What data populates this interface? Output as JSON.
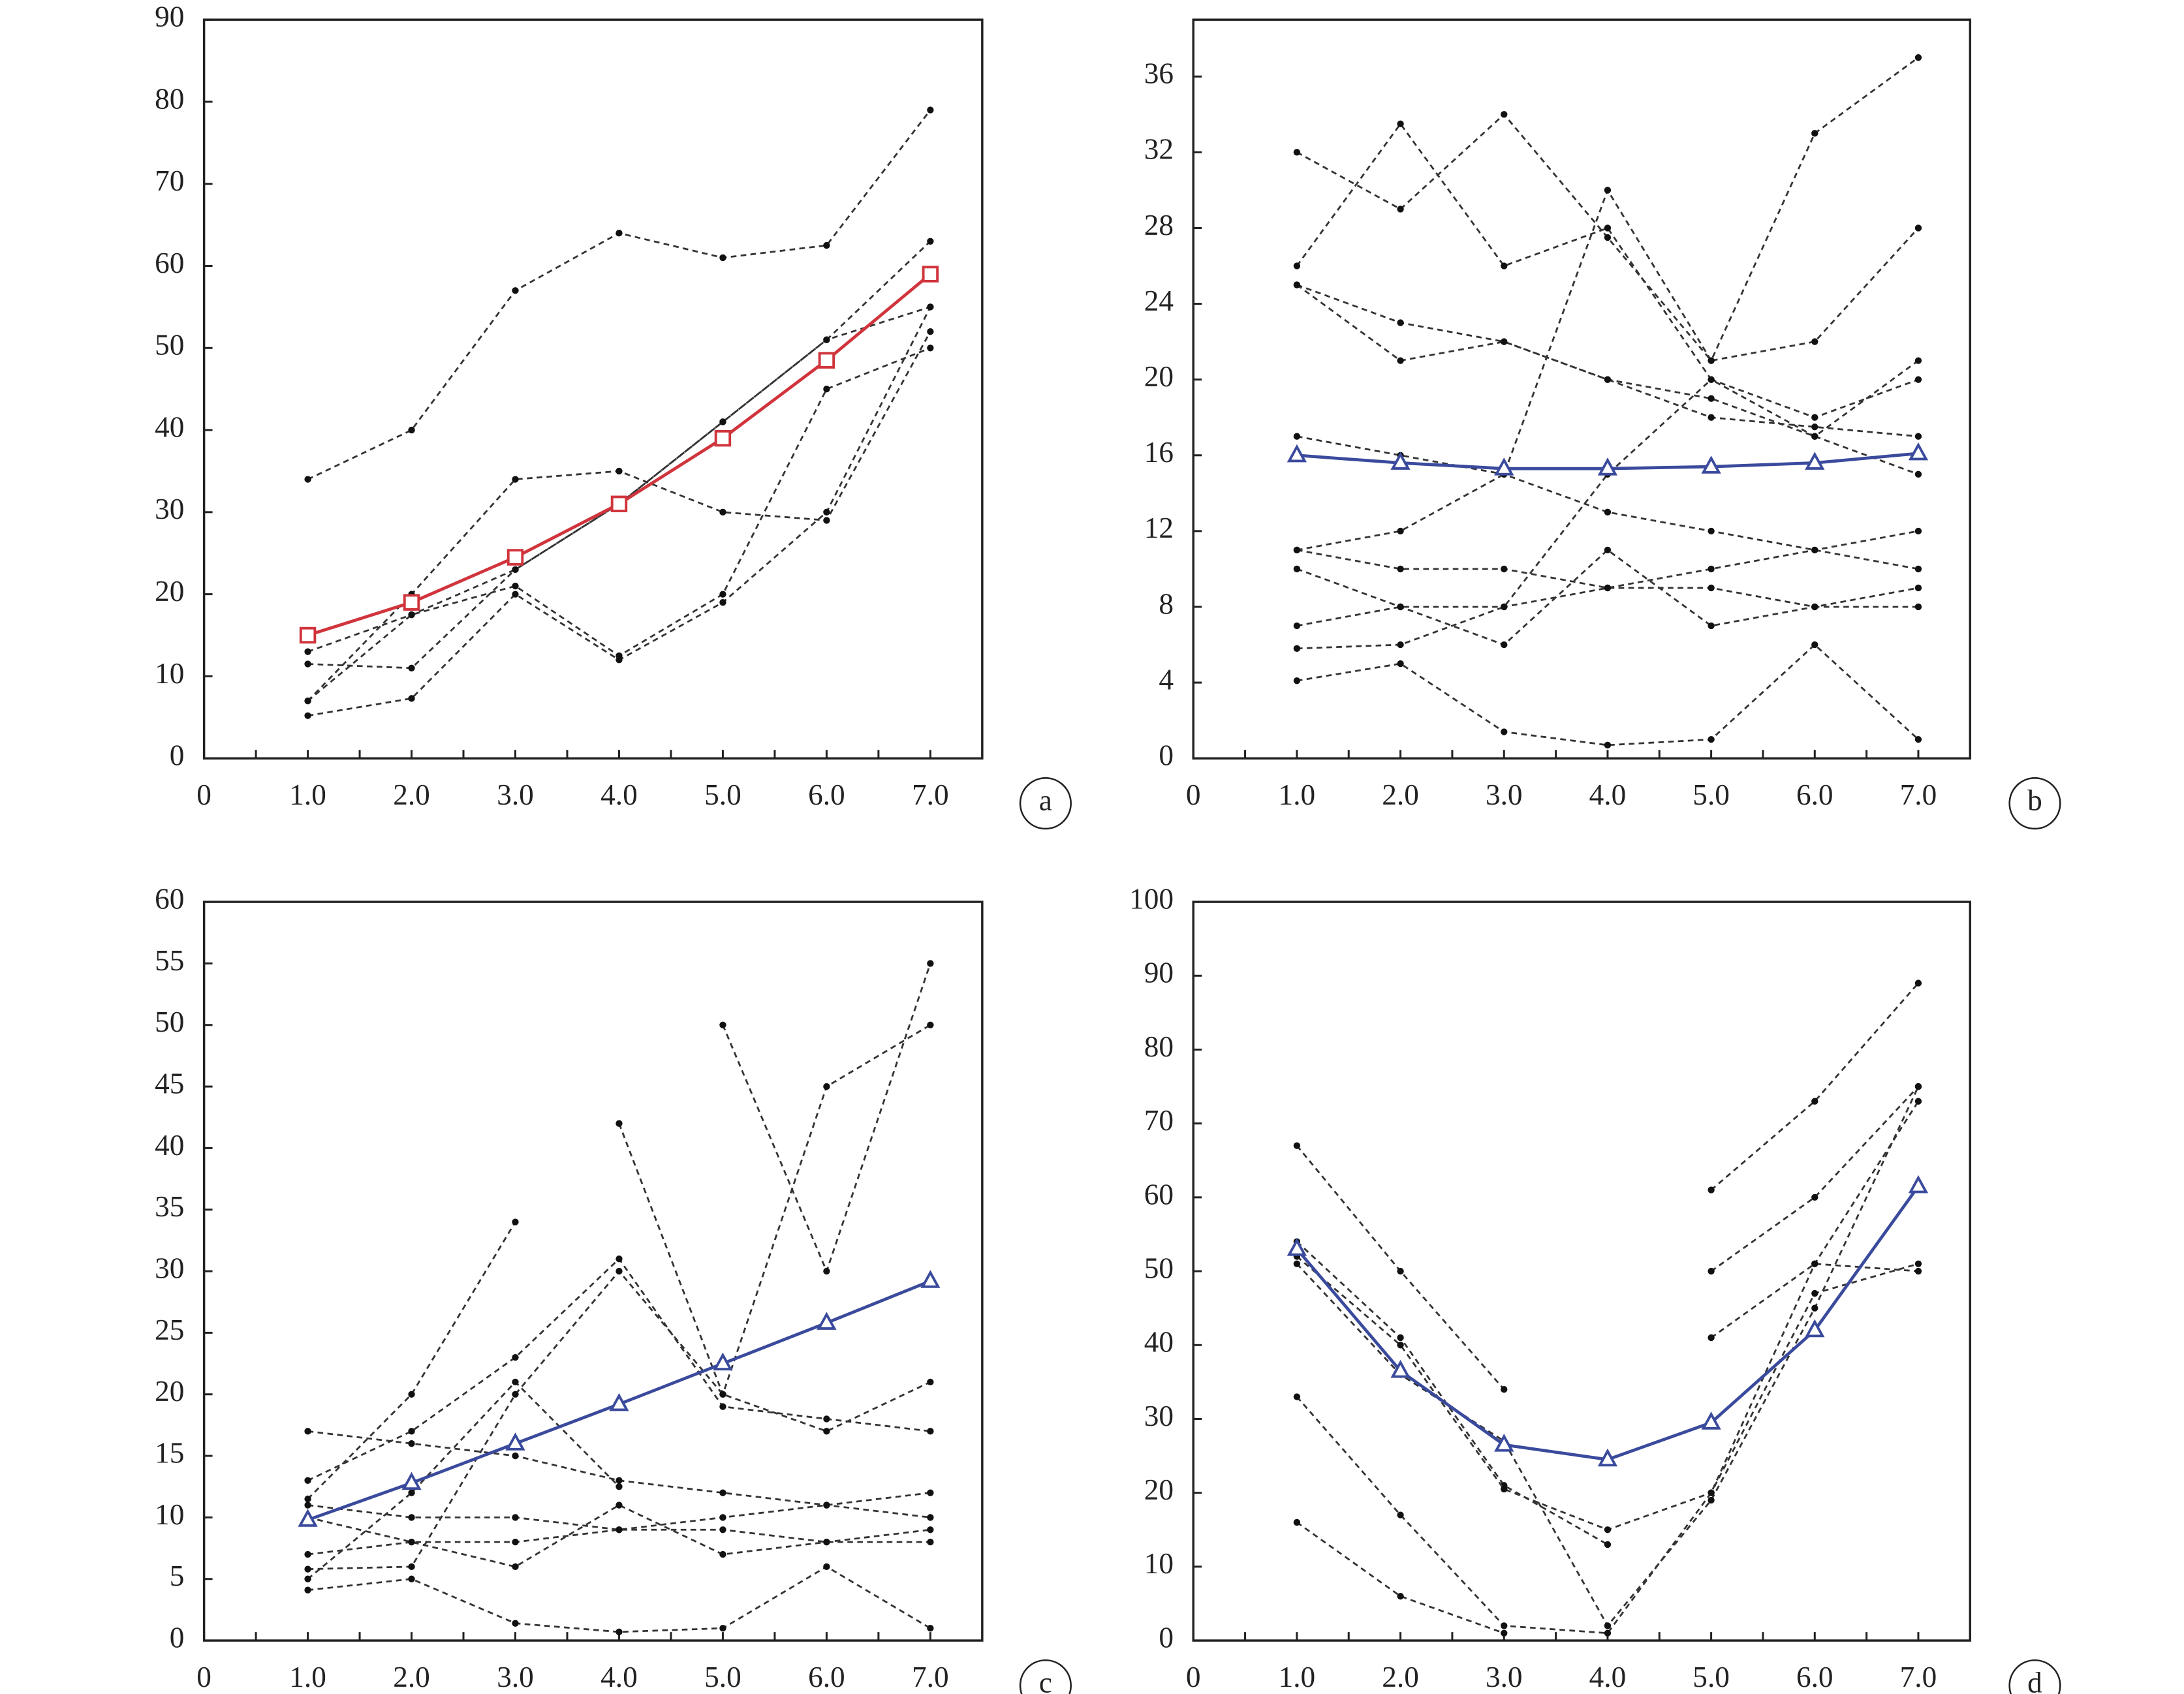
{
  "chart_data": [
    {
      "type": "line",
      "label": "a",
      "x": [
        1,
        2,
        3,
        4,
        5,
        6,
        7
      ],
      "xlim": [
        0,
        7.5
      ],
      "ylim": [
        0,
        90
      ],
      "xticks": [
        0,
        {
          "value": 1,
          "label": "1.0"
        },
        {
          "value": 2,
          "label": "2.0"
        },
        {
          "value": 3,
          "label": "3.0"
        },
        {
          "value": 4,
          "label": "4.0"
        },
        {
          "value": 5,
          "label": "5.0"
        },
        {
          "value": 6,
          "label": "6.0"
        },
        {
          "value": 7,
          "label": "7.0"
        }
      ],
      "xticks_minor": [
        0.5,
        1.5,
        2.5,
        3.5,
        4.5,
        5.5,
        6.5
      ],
      "yticks": [
        0,
        10,
        20,
        30,
        40,
        50,
        60,
        70,
        80,
        90
      ],
      "series": [
        {
          "color": "#333333",
          "linestyle": "dashed",
          "marker": "dot",
          "values": [
            34,
            40,
            57,
            64,
            61,
            62.5,
            79
          ]
        },
        {
          "color": "#333333",
          "linestyle": "dashed",
          "marker": "dot",
          "values": [
            13,
            17.5,
            23,
            31,
            41,
            51,
            63
          ]
        },
        {
          "color": "#333333",
          "linestyle": "dashed",
          "marker": "dot",
          "values": [
            11.5,
            11,
            23,
            31,
            41,
            51,
            55
          ]
        },
        {
          "color": "#333333",
          "linestyle": "dashed",
          "marker": "dot",
          "values": [
            7,
            20,
            34,
            35,
            30,
            29,
            52
          ]
        },
        {
          "color": "#333333",
          "linestyle": "dashed",
          "marker": "dot",
          "values": [
            5.2,
            7.3,
            20,
            12,
            19,
            30,
            55
          ]
        },
        {
          "color": "#333333",
          "linestyle": "dashed",
          "marker": "dot",
          "values": [
            7,
            17.5,
            21,
            12.5,
            20,
            45,
            50
          ]
        },
        {
          "color": "#d0343c",
          "linestyle": "solid",
          "marker": "square",
          "values": [
            15,
            19,
            24.5,
            31,
            39,
            48.5,
            59
          ]
        }
      ]
    },
    {
      "type": "line",
      "label": "b",
      "x": [
        1,
        2,
        3,
        4,
        5,
        6,
        7
      ],
      "xlim": [
        0,
        7.5
      ],
      "ylim": [
        0,
        39
      ],
      "xticks": [
        0,
        {
          "value": 1,
          "label": "1.0"
        },
        {
          "value": 2,
          "label": "2.0"
        },
        {
          "value": 3,
          "label": "3.0"
        },
        {
          "value": 4,
          "label": "4.0"
        },
        {
          "value": 5,
          "label": "5.0"
        },
        {
          "value": 6,
          "label": "6.0"
        },
        {
          "value": 7,
          "label": "7.0"
        }
      ],
      "xticks_minor": [
        0.5,
        1.5,
        2.5,
        3.5,
        4.5,
        5.5,
        6.5
      ],
      "yticks": [
        0,
        4,
        8,
        12,
        16,
        20,
        24,
        28,
        32,
        36
      ],
      "series": [
        {
          "color": "#333333",
          "linestyle": "dashed",
          "marker": "dot",
          "values": [
            32,
            29,
            34,
            27.5,
            21,
            22,
            28
          ]
        },
        {
          "color": "#333333",
          "linestyle": "dashed",
          "marker": "dot",
          "values": [
            26,
            33.5,
            26,
            28,
            20,
            17,
            21
          ]
        },
        {
          "color": "#333333",
          "linestyle": "dashed",
          "marker": "dot",
          "values": [
            25,
            23,
            22,
            20,
            19,
            17,
            15
          ]
        },
        {
          "color": "#333333",
          "linestyle": "dashed",
          "marker": "dot",
          "values": [
            25,
            21,
            22,
            20,
            18,
            17.5,
            17
          ]
        },
        {
          "color": "#333333",
          "linestyle": "dashed",
          "marker": "dot",
          "values": [
            17,
            16,
            15,
            13,
            12,
            11,
            10
          ]
        },
        {
          "color": "#333333",
          "linestyle": "dashed",
          "marker": "dot",
          "values": [
            11,
            12,
            15,
            30,
            21,
            33,
            37
          ]
        },
        {
          "color": "#333333",
          "linestyle": "dashed",
          "marker": "dot",
          "values": [
            11,
            10,
            10,
            9,
            9,
            8,
            8
          ]
        },
        {
          "color": "#333333",
          "linestyle": "dashed",
          "marker": "dot",
          "values": [
            10,
            8,
            6,
            11,
            7,
            8,
            9
          ]
        },
        {
          "color": "#333333",
          "linestyle": "dashed",
          "marker": "dot",
          "values": [
            7,
            8,
            8,
            9,
            10,
            11,
            12
          ]
        },
        {
          "color": "#333333",
          "linestyle": "dashed",
          "marker": "dot",
          "values": [
            5.8,
            6,
            8,
            15,
            20,
            18,
            20
          ]
        },
        {
          "color": "#333333",
          "linestyle": "dashed",
          "marker": "dot",
          "values": [
            4.1,
            5,
            1.4,
            0.7,
            1,
            6,
            1
          ]
        },
        {
          "color": "#3a4a9c",
          "linestyle": "solid",
          "marker": "triangle",
          "values": [
            16,
            15.6,
            15.3,
            15.3,
            15.4,
            15.6,
            16.1
          ]
        }
      ]
    },
    {
      "type": "line",
      "label": "c",
      "x": [
        1,
        2,
        3,
        4,
        5,
        6,
        7
      ],
      "xlim": [
        0,
        7.5
      ],
      "ylim": [
        0,
        60
      ],
      "xticks": [
        0,
        {
          "value": 1,
          "label": "1.0"
        },
        {
          "value": 2,
          "label": "2.0"
        },
        {
          "value": 3,
          "label": "3.0"
        },
        {
          "value": 4,
          "label": "4.0"
        },
        {
          "value": 5,
          "label": "5.0"
        },
        {
          "value": 6,
          "label": "6.0"
        },
        {
          "value": 7,
          "label": "7.0"
        }
      ],
      "xticks_minor": [
        0.5,
        1.5,
        2.5,
        3.5,
        4.5,
        5.5,
        6.5
      ],
      "yticks": [
        0,
        5,
        10,
        15,
        20,
        25,
        30,
        35,
        40,
        45,
        50,
        55,
        60
      ],
      "series": [
        {
          "color": "#333333",
          "linestyle": "dashed",
          "marker": "dot",
          "values": [
            17,
            16,
            15,
            13,
            12,
            11,
            10
          ]
        },
        {
          "color": "#333333",
          "linestyle": "dashed",
          "marker": "dot",
          "values": [
            13,
            17,
            23,
            31,
            19,
            18,
            17
          ]
        },
        {
          "color": "#333333",
          "linestyle": "dashed",
          "marker": "dot",
          "values": [
            11.5,
            20,
            34,
            null,
            null,
            null,
            null
          ]
        },
        {
          "color": "#333333",
          "linestyle": "dashed",
          "marker": "dot",
          "values": [
            11,
            10,
            10,
            9,
            9,
            8,
            8
          ]
        },
        {
          "color": "#333333",
          "linestyle": "dashed",
          "marker": "dot",
          "values": [
            10,
            8,
            6,
            11,
            7,
            8,
            9
          ]
        },
        {
          "color": "#333333",
          "linestyle": "dashed",
          "marker": "dot",
          "values": [
            7,
            8,
            8,
            9,
            10,
            11,
            12
          ]
        },
        {
          "color": "#333333",
          "linestyle": "dashed",
          "marker": "dot",
          "values": [
            5.8,
            6,
            20,
            30,
            20,
            17,
            21
          ]
        },
        {
          "color": "#333333",
          "linestyle": "dashed",
          "marker": "dot",
          "values": [
            5,
            12,
            21,
            12.5,
            null,
            null,
            null
          ]
        },
        {
          "color": "#333333",
          "linestyle": "dashed",
          "marker": "dot",
          "values": [
            null,
            null,
            null,
            42,
            20,
            45,
            50
          ]
        },
        {
          "color": "#333333",
          "linestyle": "dashed",
          "marker": "dot",
          "values": [
            null,
            null,
            null,
            null,
            50,
            30,
            55
          ]
        },
        {
          "color": "#333333",
          "linestyle": "dashed",
          "marker": "dot",
          "values": [
            4.1,
            5,
            1.4,
            0.7,
            1,
            6,
            1
          ]
        },
        {
          "color": "#3a4a9c",
          "linestyle": "solid",
          "marker": "triangle",
          "values": [
            9.8,
            12.8,
            16,
            19.2,
            22.5,
            25.8,
            29.2
          ]
        }
      ]
    },
    {
      "type": "line",
      "label": "d",
      "x": [
        1,
        2,
        3,
        4,
        5,
        6,
        7
      ],
      "xlim": [
        0,
        7.5
      ],
      "ylim": [
        0,
        100
      ],
      "xticks": [
        0,
        {
          "value": 1,
          "label": "1.0"
        },
        {
          "value": 2,
          "label": "2.0"
        },
        {
          "value": 3,
          "label": "3.0"
        },
        {
          "value": 4,
          "label": "4.0"
        },
        {
          "value": 5,
          "label": "5.0"
        },
        {
          "value": 6,
          "label": "6.0"
        },
        {
          "value": 7,
          "label": "7.0"
        }
      ],
      "xticks_minor": [
        0.5,
        1.5,
        2.5,
        3.5,
        4.5,
        5.5,
        6.5
      ],
      "yticks": [
        0,
        10,
        20,
        30,
        40,
        50,
        60,
        70,
        80,
        90,
        100
      ],
      "series": [
        {
          "color": "#333333",
          "linestyle": "dashed",
          "marker": "dot",
          "values": [
            67,
            50,
            34,
            null,
            null,
            null,
            null
          ]
        },
        {
          "color": "#333333",
          "linestyle": "dashed",
          "marker": "dot",
          "values": [
            54,
            41,
            21,
            13,
            null,
            null,
            null
          ]
        },
        {
          "color": "#333333",
          "linestyle": "dashed",
          "marker": "dot",
          "values": [
            52,
            40,
            20.5,
            15,
            20,
            47,
            51
          ]
        },
        {
          "color": "#333333",
          "linestyle": "dashed",
          "marker": "dot",
          "values": [
            51,
            36,
            27,
            2,
            19,
            45,
            75
          ]
        },
        {
          "color": "#333333",
          "linestyle": "dashed",
          "marker": "dot",
          "values": [
            33,
            17,
            2,
            1,
            20,
            51,
            73
          ]
        },
        {
          "color": "#333333",
          "linestyle": "dashed",
          "marker": "dot",
          "values": [
            16,
            6,
            1,
            null,
            null,
            null,
            null
          ]
        },
        {
          "color": "#333333",
          "linestyle": "dashed",
          "marker": "dot",
          "values": [
            null,
            null,
            null,
            null,
            61,
            73,
            89
          ]
        },
        {
          "color": "#333333",
          "linestyle": "dashed",
          "marker": "dot",
          "values": [
            null,
            null,
            null,
            null,
            50,
            60,
            75
          ]
        },
        {
          "color": "#333333",
          "linestyle": "dashed",
          "marker": "dot",
          "values": [
            null,
            null,
            null,
            null,
            41,
            51,
            50
          ]
        },
        {
          "color": "#3a4a9c",
          "linestyle": "solid",
          "marker": "triangle",
          "values": [
            53,
            36.5,
            26.5,
            24.5,
            29.5,
            42,
            61.5
          ]
        }
      ]
    }
  ]
}
